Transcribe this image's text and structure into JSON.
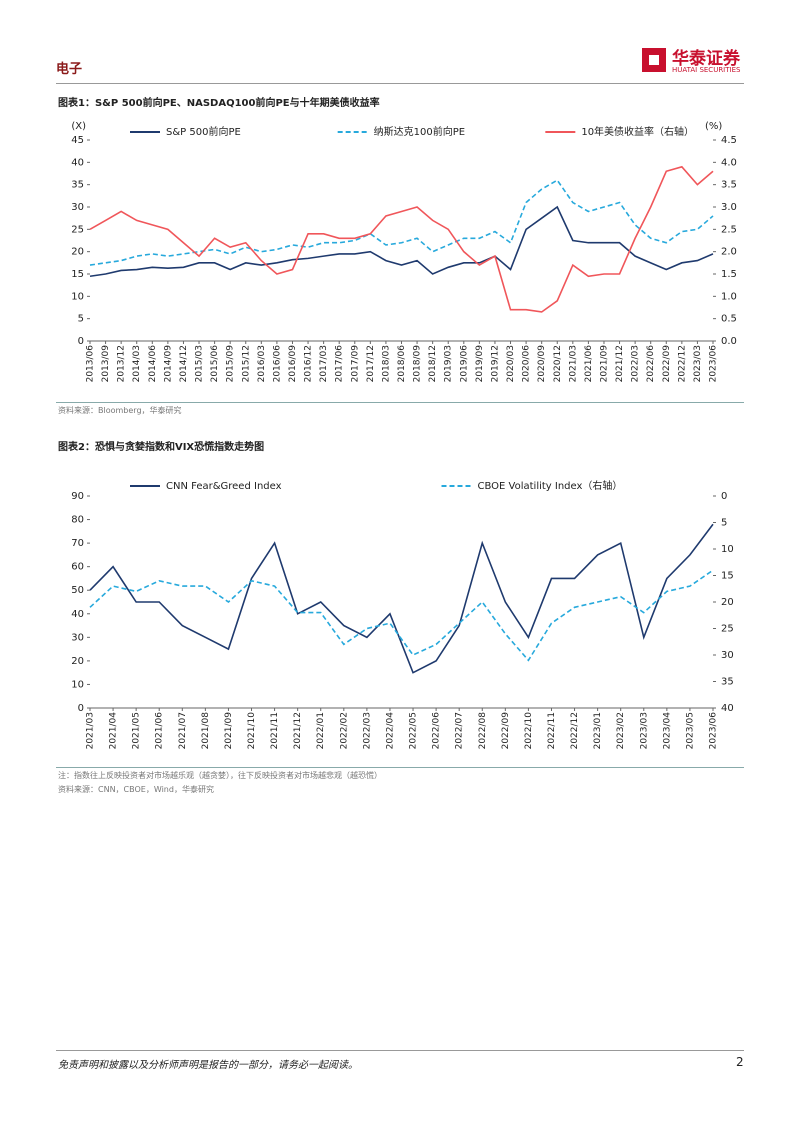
{
  "header": {
    "section": "电子",
    "logo_cn": "华泰证券",
    "logo_en": "HUATAI SECURITIES"
  },
  "figures": [
    {
      "title": "图表1：S&P 500前向PE、NASDAQ100前向PE与十年期美债收益率",
      "source": "资料来源：Bloomberg，华泰研究",
      "chart_data": {
        "type": "line",
        "y_unit": "(X)",
        "y2_unit": "(%)",
        "categories": [
          "2013/06",
          "2013/09",
          "2013/12",
          "2014/03",
          "2014/06",
          "2014/09",
          "2014/12",
          "2015/03",
          "2015/06",
          "2015/09",
          "2015/12",
          "2016/03",
          "2016/06",
          "2016/09",
          "2016/12",
          "2017/03",
          "2017/06",
          "2017/09",
          "2017/12",
          "2018/03",
          "2018/06",
          "2018/09",
          "2018/12",
          "2019/03",
          "2019/06",
          "2019/09",
          "2019/12",
          "2020/03",
          "2020/06",
          "2020/09",
          "2020/12",
          "2021/03",
          "2021/06",
          "2021/09",
          "2021/12",
          "2022/03",
          "2022/06",
          "2022/09",
          "2022/12",
          "2023/03",
          "2023/06"
        ],
        "ylim": [
          0,
          45
        ],
        "yticks": [
          0,
          5,
          10,
          15,
          20,
          25,
          30,
          35,
          40,
          45
        ],
        "y2lim": [
          0,
          4.5
        ],
        "y2ticks": [
          {
            "value": 0,
            "label": "0.0"
          },
          0.5,
          {
            "value": 1,
            "label": "1.0"
          },
          1.5,
          {
            "value": 2,
            "label": "2.0"
          },
          2.5,
          {
            "value": 3,
            "label": "3.0"
          },
          3.5,
          {
            "value": 4,
            "label": "4.0"
          },
          4.5
        ],
        "y2_inverted": false,
        "series": [
          {
            "name": "S&P 500前向PE",
            "color": "#1f3a6e",
            "line_style": "solid",
            "values": [
              14.5,
              15,
              15.8,
              16,
              16.5,
              16.3,
              16.5,
              17.5,
              17.5,
              16,
              17.5,
              17,
              17.5,
              18.2,
              18.5,
              19,
              19.5,
              19.5,
              20,
              18,
              17,
              18,
              15,
              16.5,
              17.5,
              17.5,
              19,
              16,
              25,
              27.5,
              30,
              22.5,
              22,
              22,
              22,
              19,
              17.5,
              16,
              17.5,
              18,
              19.5
            ]
          },
          {
            "name": "纳斯达克100前向PE",
            "color": "#27a9dc",
            "line_style": "dashed",
            "values": [
              17,
              17.5,
              18,
              19,
              19.5,
              19,
              19.5,
              20,
              20.5,
              19.5,
              21,
              20,
              20.5,
              21.5,
              21,
              22,
              22,
              22.5,
              24,
              21.5,
              22,
              23,
              20,
              21.5,
              23,
              23,
              24.5,
              22,
              31,
              34,
              36,
              31,
              29,
              30,
              31,
              26,
              23,
              22,
              24.5,
              25,
              28
            ]
          },
          {
            "name": "10年美债收益率（右轴）",
            "color": "#f0565a",
            "line_style": "solid",
            "axis": "y2",
            "values": [
              2.5,
              2.7,
              2.9,
              2.7,
              2.6,
              2.5,
              2.2,
              1.9,
              2.3,
              2.1,
              2.2,
              1.8,
              1.5,
              1.6,
              2.4,
              2.4,
              2.3,
              2.3,
              2.4,
              2.8,
              2.9,
              3.0,
              2.7,
              2.5,
              2.0,
              1.7,
              1.9,
              0.7,
              0.7,
              0.65,
              0.9,
              1.7,
              1.45,
              1.5,
              1.5,
              2.3,
              3.0,
              3.8,
              3.9,
              3.5,
              3.8
            ]
          }
        ]
      }
    },
    {
      "title": "图表2：恐惧与贪婪指数和VIX恐慌指数走势图",
      "note": "注：指数往上反映投资者对市场越乐观（越贪婪），往下反映投资者对市场越悲观（越恐慌）",
      "source": "资料来源：CNN，CBOE，Wind，华泰研究",
      "chart_data": {
        "type": "line",
        "categories": [
          "2021/03",
          "2021/04",
          "2021/05",
          "2021/06",
          "2021/07",
          "2021/08",
          "2021/09",
          "2021/10",
          "2021/11",
          "2021/12",
          "2022/01",
          "2022/02",
          "2022/03",
          "2022/04",
          "2022/05",
          "2022/06",
          "2022/07",
          "2022/08",
          "2022/09",
          "2022/10",
          "2022/11",
          "2022/12",
          "2023/01",
          "2023/02",
          "2023/03",
          "2023/04",
          "2023/05",
          "2023/06"
        ],
        "ylim": [
          0,
          90
        ],
        "yticks": [
          0,
          10,
          20,
          30,
          40,
          50,
          60,
          70,
          80,
          90
        ],
        "y2lim": [
          0,
          40
        ],
        "y2ticks": [
          0,
          5,
          10,
          15,
          20,
          25,
          30,
          35,
          40
        ],
        "y2_inverted": true,
        "series": [
          {
            "name": "CNN Fear&Greed Index",
            "color": "#1f3a6e",
            "line_style": "solid",
            "values": [
              50,
              60,
              45,
              45,
              35,
              30,
              25,
              55,
              70,
              40,
              45,
              35,
              30,
              40,
              15,
              20,
              35,
              70,
              45,
              30,
              55,
              55,
              65,
              70,
              30,
              55,
              65,
              78
            ]
          },
          {
            "name": "CBOE Volatility Index（右轴）",
            "color": "#27a9dc",
            "line_style": "dashed",
            "axis": "y2",
            "values": [
              21,
              17,
              18,
              16,
              17,
              17,
              20,
              16,
              17,
              22,
              22,
              28,
              25,
              24,
              30,
              28,
              24,
              20,
              26,
              31,
              24,
              21,
              20,
              19,
              22,
              18,
              17,
              14
            ]
          }
        ]
      }
    }
  ],
  "footer": {
    "disclaimer": "免责声明和披露以及分析师声明是报告的一部分，请务必一起阅读。",
    "page_number": "2"
  }
}
